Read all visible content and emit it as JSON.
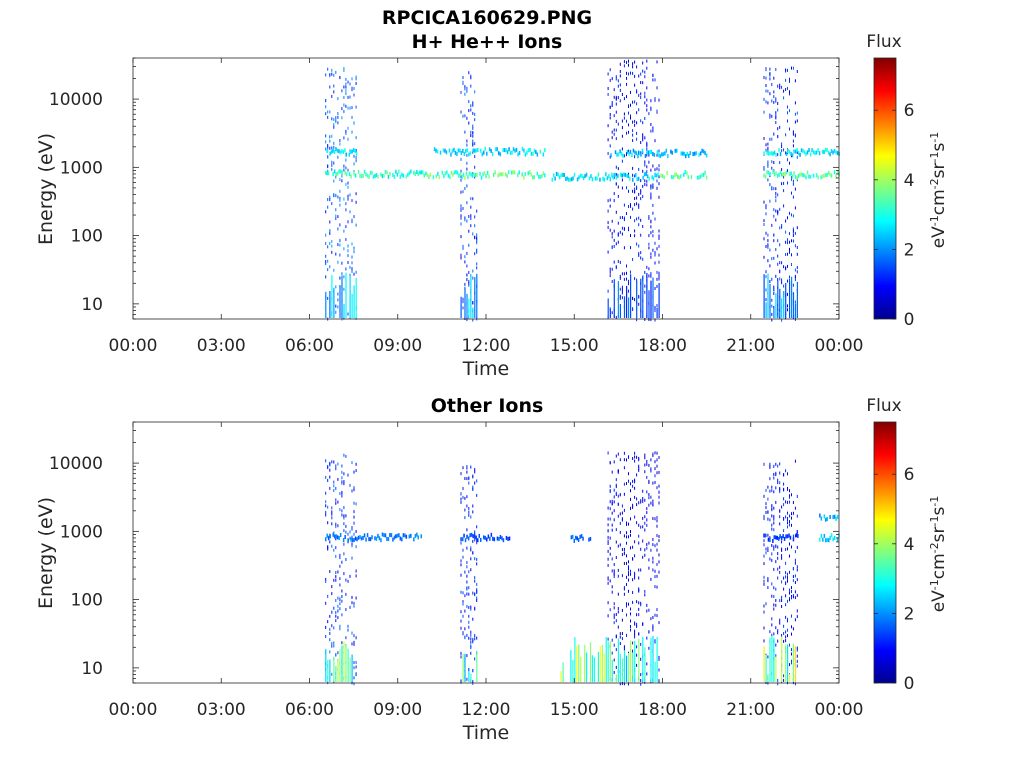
{
  "figure": {
    "filename": "RPCICA160629.PNG"
  },
  "chart_data": [
    {
      "type": "heatmap",
      "title": "H+ He++ Ions",
      "xlabel": "Time",
      "ylabel": "Energy (eV)",
      "x_ticks": [
        "00:00",
        "03:00",
        "06:00",
        "09:00",
        "12:00",
        "15:00",
        "18:00",
        "21:00",
        "00:00"
      ],
      "xlim_hours": [
        0,
        24
      ],
      "y_scale": "log",
      "y_ticks": [
        "10",
        "100",
        "1000",
        "10000"
      ],
      "ylim": [
        6,
        40000
      ],
      "colorbar": {
        "title": "Flux",
        "unit_label": "eV-1cm-2sr-1s-1",
        "ticks": [
          "0",
          "2",
          "4",
          "6"
        ],
        "range": [
          0,
          7.5
        ],
        "colormap": "jet"
      },
      "bursts": [
        {
          "start_h": 6.5,
          "end_h": 7.6,
          "e_min": 6,
          "e_max": 30000,
          "flux": 1.6
        },
        {
          "start_h": 11.1,
          "end_h": 11.7,
          "e_min": 6,
          "e_max": 30000,
          "flux": 1.3
        },
        {
          "start_h": 16.1,
          "end_h": 17.9,
          "e_min": 6,
          "e_max": 38000,
          "flux": 1.0
        },
        {
          "start_h": 21.4,
          "end_h": 22.6,
          "e_min": 6,
          "e_max": 30000,
          "flux": 1.2
        }
      ],
      "bands": [
        {
          "start_h": 6.5,
          "end_h": 7.6,
          "energy": 1700,
          "flux": 2.6
        },
        {
          "start_h": 6.5,
          "end_h": 9.8,
          "energy": 800,
          "flux": 3.2
        },
        {
          "start_h": 9.8,
          "end_h": 14.0,
          "energy": 780,
          "flux": 3.4
        },
        {
          "start_h": 10.2,
          "end_h": 14.0,
          "energy": 1700,
          "flux": 2.6
        },
        {
          "start_h": 14.2,
          "end_h": 17.9,
          "energy": 730,
          "flux": 2.6
        },
        {
          "start_h": 16.1,
          "end_h": 19.5,
          "energy": 1600,
          "flux": 2.4
        },
        {
          "start_h": 17.9,
          "end_h": 19.5,
          "energy": 780,
          "flux": 3.4
        },
        {
          "start_h": 21.4,
          "end_h": 24.0,
          "energy": 780,
          "flux": 3.4
        },
        {
          "start_h": 21.4,
          "end_h": 24.0,
          "energy": 1650,
          "flux": 2.6
        }
      ],
      "low_energy": [
        {
          "start_h": 6.5,
          "end_h": 7.6,
          "flux": 2.4
        },
        {
          "start_h": 11.1,
          "end_h": 11.7,
          "flux": 2.2
        },
        {
          "start_h": 16.1,
          "end_h": 17.9,
          "flux": 1.6
        },
        {
          "start_h": 21.4,
          "end_h": 22.6,
          "flux": 2.0
        }
      ]
    },
    {
      "type": "heatmap",
      "title": "Other Ions",
      "xlabel": "Time",
      "ylabel": "Energy (eV)",
      "x_ticks": [
        "00:00",
        "03:00",
        "06:00",
        "09:00",
        "12:00",
        "15:00",
        "18:00",
        "21:00",
        "00:00"
      ],
      "xlim_hours": [
        0,
        24
      ],
      "y_scale": "log",
      "y_ticks": [
        "10",
        "100",
        "1000",
        "10000"
      ],
      "ylim": [
        6,
        40000
      ],
      "colorbar": {
        "title": "Flux",
        "unit_label": "eV-1cm-2sr-1s-1",
        "ticks": [
          "0",
          "2",
          "4",
          "6"
        ],
        "range": [
          0,
          7.5
        ],
        "colormap": "jet"
      },
      "bursts": [
        {
          "start_h": 6.5,
          "end_h": 7.6,
          "e_min": 6,
          "e_max": 15000,
          "flux": 1.3
        },
        {
          "start_h": 11.1,
          "end_h": 11.7,
          "e_min": 6,
          "e_max": 10000,
          "flux": 1.2
        },
        {
          "start_h": 16.1,
          "end_h": 17.9,
          "e_min": 6,
          "e_max": 15000,
          "flux": 0.9
        },
        {
          "start_h": 21.4,
          "end_h": 22.6,
          "e_min": 6,
          "e_max": 12000,
          "flux": 1.1
        }
      ],
      "bands": [
        {
          "start_h": 6.5,
          "end_h": 9.8,
          "energy": 820,
          "flux": 1.8
        },
        {
          "start_h": 11.1,
          "end_h": 12.8,
          "energy": 820,
          "flux": 1.5
        },
        {
          "start_h": 14.8,
          "end_h": 15.6,
          "energy": 780,
          "flux": 1.8
        },
        {
          "start_h": 21.4,
          "end_h": 22.6,
          "energy": 800,
          "flux": 1.4
        },
        {
          "start_h": 23.3,
          "end_h": 24.0,
          "energy": 820,
          "flux": 2.4
        },
        {
          "start_h": 23.3,
          "end_h": 24.0,
          "energy": 1600,
          "flux": 2.2
        }
      ],
      "low_energy": [
        {
          "start_h": 6.5,
          "end_h": 7.6,
          "flux": 3.4
        },
        {
          "start_h": 11.1,
          "end_h": 11.7,
          "flux": 3.0
        },
        {
          "start_h": 14.5,
          "end_h": 16.1,
          "flux": 3.8
        },
        {
          "start_h": 16.1,
          "end_h": 17.9,
          "flux": 3.2
        },
        {
          "start_h": 21.4,
          "end_h": 22.6,
          "flux": 3.8
        }
      ]
    }
  ]
}
